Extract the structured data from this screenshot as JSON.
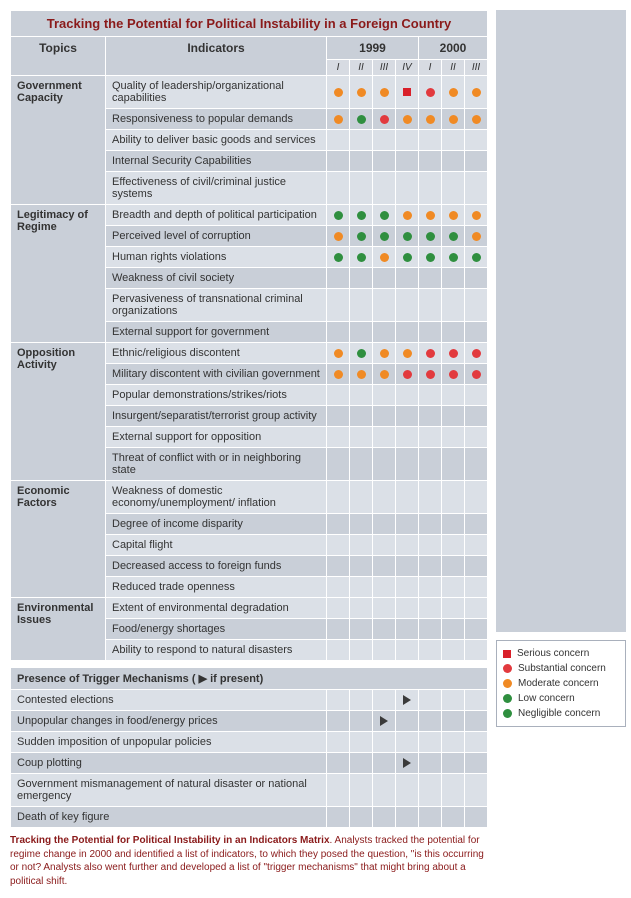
{
  "title": "Tracking the Potential for Political Instability in a Foreign Country",
  "columns": {
    "topics": "Topics",
    "indicators": "Indicators",
    "year1": "1999",
    "year2": "2000",
    "sub1": [
      "I",
      "II",
      "III",
      "IV"
    ],
    "sub2": [
      "I",
      "II",
      "III"
    ]
  },
  "colors": {
    "serious": "#d9202a",
    "substantial": "#e23a3e",
    "moderate": "#f08a24",
    "low": "#2f8f3f",
    "negligible": "#2f8f3f",
    "header_bg": "#c9cfd8",
    "row_light": "#dbe0e7",
    "row_dark": "#c9cfd8",
    "caption_color": "#8a1a1a"
  },
  "legend": [
    {
      "shape": "square",
      "color": "#d9202a",
      "label": "Serious concern"
    },
    {
      "shape": "circle",
      "color": "#e23a3e",
      "label": "Substantial concern"
    },
    {
      "shape": "circle",
      "color": "#f08a24",
      "label": "Moderate concern"
    },
    {
      "shape": "circle",
      "color": "#2f8f3f",
      "label": "Low concern"
    },
    {
      "shape": "circle",
      "color": "#2f8f3f",
      "label": "Negligible concern"
    }
  ],
  "topics": [
    {
      "name": "Government Capacity",
      "rows": [
        {
          "label": "Quality of leadership/organizational capabilities",
          "cells": [
            "m",
            "m",
            "m",
            "s",
            "r",
            "m",
            "m"
          ]
        },
        {
          "label": "Responsiveness to popular demands",
          "cells": [
            "m",
            "l",
            "r",
            "m",
            "m",
            "m",
            "m"
          ]
        },
        {
          "label": "Ability to deliver basic goods and services",
          "cells": [
            "",
            "",
            "",
            "",
            "",
            "",
            ""
          ]
        },
        {
          "label": "Internal Security Capabilities",
          "cells": [
            "",
            "",
            "",
            "",
            "",
            "",
            ""
          ]
        },
        {
          "label": "Effectiveness of civil/criminal justice systems",
          "cells": [
            "",
            "",
            "",
            "",
            "",
            "",
            ""
          ]
        }
      ]
    },
    {
      "name": "Legitimacy of Regime",
      "rows": [
        {
          "label": "Breadth and depth of political participation",
          "cells": [
            "l",
            "l",
            "l",
            "m",
            "m",
            "m",
            "m"
          ]
        },
        {
          "label": "Perceived level of corruption",
          "cells": [
            "m",
            "l",
            "l",
            "l",
            "l",
            "l",
            "m"
          ]
        },
        {
          "label": "Human rights violations",
          "cells": [
            "l",
            "l",
            "m",
            "l",
            "l",
            "l",
            "l"
          ]
        },
        {
          "label": "Weakness of civil society",
          "cells": [
            "",
            "",
            "",
            "",
            "",
            "",
            ""
          ]
        },
        {
          "label": "Pervasiveness of transnational criminal organizations",
          "cells": [
            "",
            "",
            "",
            "",
            "",
            "",
            ""
          ]
        },
        {
          "label": "External support for government",
          "cells": [
            "",
            "",
            "",
            "",
            "",
            "",
            ""
          ]
        }
      ]
    },
    {
      "name": "Opposition Activity",
      "rows": [
        {
          "label": "Ethnic/religious discontent",
          "cells": [
            "m",
            "l",
            "m",
            "m",
            "r",
            "r",
            "r"
          ]
        },
        {
          "label": "Military discontent with civilian government",
          "cells": [
            "m",
            "m",
            "m",
            "r",
            "r",
            "r",
            "r"
          ]
        },
        {
          "label": "Popular demonstrations/strikes/riots",
          "cells": [
            "",
            "",
            "",
            "",
            "",
            "",
            ""
          ]
        },
        {
          "label": "Insurgent/separatist/terrorist group activity",
          "cells": [
            "",
            "",
            "",
            "",
            "",
            "",
            ""
          ]
        },
        {
          "label": "External support for opposition",
          "cells": [
            "",
            "",
            "",
            "",
            "",
            "",
            ""
          ]
        },
        {
          "label": "Threat of conflict with or in neighboring state",
          "cells": [
            "",
            "",
            "",
            "",
            "",
            "",
            ""
          ]
        }
      ]
    },
    {
      "name": "Economic Factors",
      "rows": [
        {
          "label": "Weakness of domestic economy/unemployment/ inflation",
          "cells": [
            "",
            "",
            "",
            "",
            "",
            "",
            ""
          ]
        },
        {
          "label": "Degree of income disparity",
          "cells": [
            "",
            "",
            "",
            "",
            "",
            "",
            ""
          ]
        },
        {
          "label": "Capital flight",
          "cells": [
            "",
            "",
            "",
            "",
            "",
            "",
            ""
          ]
        },
        {
          "label": "Decreased access to foreign funds",
          "cells": [
            "",
            "",
            "",
            "",
            "",
            "",
            ""
          ]
        },
        {
          "label": "Reduced trade openness",
          "cells": [
            "",
            "",
            "",
            "",
            "",
            "",
            ""
          ]
        }
      ]
    },
    {
      "name": "Environmental Issues",
      "rows": [
        {
          "label": "Extent of environmental degradation",
          "cells": [
            "",
            "",
            "",
            "",
            "",
            "",
            ""
          ]
        },
        {
          "label": "Food/energy shortages",
          "cells": [
            "",
            "",
            "",
            "",
            "",
            "",
            ""
          ]
        },
        {
          "label": "Ability to respond to natural disasters",
          "cells": [
            "",
            "",
            "",
            "",
            "",
            "",
            ""
          ]
        }
      ]
    }
  ],
  "trigger_title": "Presence of Trigger Mechanisms (  ▶  if present)",
  "triggers": [
    {
      "label": "Contested elections",
      "cells": [
        "",
        "",
        "",
        "t",
        "",
        "",
        ""
      ]
    },
    {
      "label": "Unpopular changes in food/energy prices",
      "cells": [
        "",
        "",
        "t",
        "",
        "",
        "",
        ""
      ]
    },
    {
      "label": "Sudden imposition of unpopular policies",
      "cells": [
        "",
        "",
        "",
        "",
        "",
        "",
        ""
      ]
    },
    {
      "label": "Coup plotting",
      "cells": [
        "",
        "",
        "",
        "t",
        "",
        "",
        ""
      ]
    },
    {
      "label": "Government mismanagement of natural disaster or national emergency",
      "cells": [
        "",
        "",
        "",
        "",
        "",
        "",
        ""
      ]
    },
    {
      "label": "Death of key figure",
      "cells": [
        "",
        "",
        "",
        "",
        "",
        "",
        ""
      ]
    }
  ],
  "caption_bold": "Tracking the Potential for Political Instability in an Indicators Matrix",
  "caption_rest": ". Analysts tracked the potential for regime change in 2000 and identified a list of indicators, to which they posed the question, \"is this occurring or not? Analysts also went further and developed a list of \"trigger mechanisms\" that might bring about a political shift."
}
